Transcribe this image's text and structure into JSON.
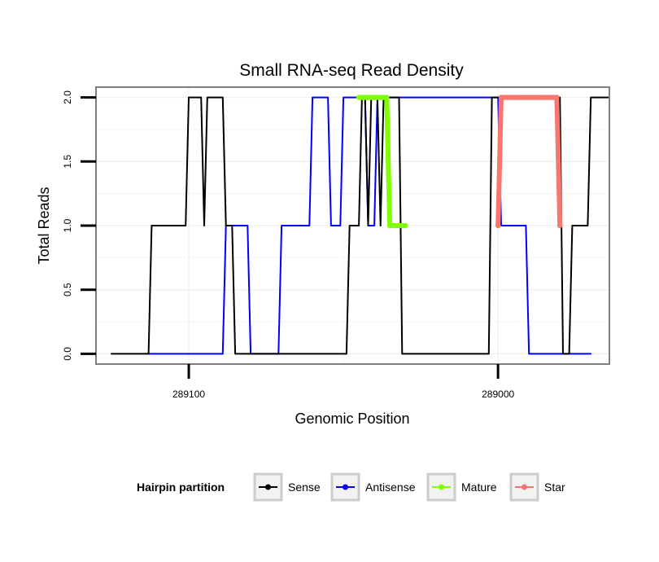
{
  "chart_data": {
    "type": "line",
    "title": "Small RNA-seq Read Density",
    "xlabel": "Genomic Position",
    "ylabel": "Total Reads",
    "x_reversed": true,
    "xlim": [
      289130,
      288964
    ],
    "ylim": [
      -0.08,
      2.08
    ],
    "x_ticks": [
      289100,
      289000
    ],
    "x_tick_labels": [
      "289100",
      "289000"
    ],
    "y_ticks": [
      0,
      0.5,
      1,
      1.5,
      2
    ],
    "y_tick_labels": [
      "0.0",
      "0.5",
      "1.0",
      "1.5",
      "2.0"
    ],
    "grid": true,
    "legend_position": "bottom",
    "legend_title": "Hairpin partition",
    "colors": {
      "Sense": "#000000",
      "Antisense": "#0000ff",
      "Mature": "#7fff00",
      "Star": "#f8766d"
    },
    "series": [
      {
        "name": "Sense",
        "x": [
          289125,
          289113,
          289112,
          289101,
          289100,
          289096,
          289095,
          289094,
          289089,
          289088,
          289086,
          289085,
          289083,
          289049,
          289048,
          289045,
          289044,
          289043,
          289042,
          289041,
          289039,
          289038,
          289037,
          289032,
          289031,
          289024,
          289023,
          289021,
          289020,
          289012,
          289011,
          289003,
          289002,
          288980,
          288979,
          288977,
          288976,
          288971,
          288970,
          288964
        ],
        "values": [
          0,
          0,
          1,
          1,
          2,
          2,
          1,
          2,
          2,
          1,
          1,
          0,
          0,
          0,
          1,
          1,
          2,
          2,
          1,
          2,
          2,
          1,
          2,
          2,
          0,
          0,
          0,
          0,
          0,
          0,
          0,
          0,
          2,
          2,
          0,
          0,
          1,
          1,
          2,
          2
        ]
      },
      {
        "name": "Antisense",
        "x": [
          289113,
          289089,
          289088,
          289081,
          289080,
          289071,
          289070,
          289061,
          289060,
          289055,
          289054,
          289051,
          289050,
          289043,
          289042,
          289040,
          289039,
          289000,
          288999,
          288991,
          288990,
          288974,
          288973,
          288970
        ],
        "values": [
          0,
          0,
          1,
          1,
          0,
          0,
          1,
          1,
          2,
          2,
          1,
          1,
          2,
          2,
          1,
          1,
          2,
          2,
          1,
          1,
          0,
          0,
          0,
          0
        ]
      },
      {
        "name": "Mature",
        "x": [
          289045,
          289044,
          289043,
          289042,
          289041,
          289040,
          289039,
          289038,
          289037,
          289036,
          289035,
          289034,
          289033,
          289032,
          289031,
          289030
        ],
        "values": [
          2,
          2,
          2,
          2,
          2,
          2,
          2,
          2,
          2,
          2,
          1,
          1,
          1,
          1,
          1,
          1
        ]
      },
      {
        "name": "Star",
        "x": [
          289000,
          288999,
          288998,
          288997,
          288996,
          288995,
          288994,
          288993,
          288992,
          288991,
          288990,
          288989,
          288988,
          288987,
          288986,
          288985,
          288984,
          288983,
          288982,
          288981,
          288980
        ],
        "values": [
          1,
          2,
          2,
          2,
          2,
          2,
          2,
          2,
          2,
          2,
          2,
          2,
          2,
          2,
          2,
          2,
          2,
          2,
          2,
          2,
          1
        ]
      }
    ]
  }
}
